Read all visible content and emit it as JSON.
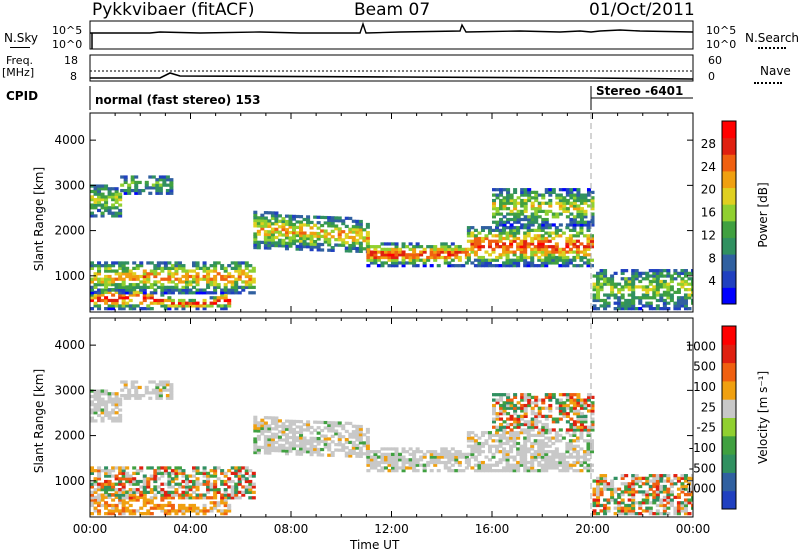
{
  "header": {
    "station": "Pykkvibaer (fitACF)",
    "beam": "Beam 07",
    "date": "01/Oct/2011"
  },
  "top_panels": {
    "nsky_label": "N.Sky",
    "nsky_ticks": [
      "10^5",
      "10^0"
    ],
    "nsearch_label": "N.Search",
    "nsearch_ticks": [
      "10^5",
      "10^0"
    ],
    "freq_label": "Freq.",
    "freq_unit": "[MHz]",
    "freq_ticks": [
      "18",
      "8"
    ],
    "nave_label": "Nave",
    "nave_ticks": [
      "60",
      "0"
    ],
    "cpid_label": "CPID",
    "cpid_programs": [
      "normal (fast stereo) 153",
      "Stereo -6401"
    ]
  },
  "colors": {
    "power_scale": [
      "#0000ff",
      "#2040c0",
      "#3060a0",
      "#309060",
      "#40a040",
      "#90d030",
      "#e0d020",
      "#f0a010",
      "#f06010",
      "#e02010",
      "#ff0000"
    ],
    "velocity_scale": [
      "#2040c0",
      "#3060a0",
      "#309060",
      "#40a040",
      "#90d030",
      "#c8c8c8",
      "#f0a010",
      "#f06010",
      "#e02010",
      "#ff0000"
    ]
  },
  "chart_data": [
    {
      "type": "heatmap",
      "title": "",
      "quantity": "Power",
      "colorbar_label": "Power [dB]",
      "colorbar_ticks": [
        "28",
        "24",
        "20",
        "16",
        "12",
        "8",
        "4"
      ],
      "xlabel": "",
      "ylabel": "Slant Range [km]",
      "ylim": [
        200,
        4600
      ],
      "yticks": [
        "4000",
        "3000",
        "2000",
        "1000"
      ],
      "xticks": [
        "00:00",
        "04:00",
        "08:00",
        "12:00",
        "16:00",
        "20:00",
        "00:00"
      ]
    },
    {
      "type": "heatmap",
      "title": "",
      "quantity": "Velocity",
      "colorbar_label": "Velocity [m s⁻¹]",
      "colorbar_ticks": [
        "1000",
        "500",
        "100",
        "25",
        "-25",
        "-100",
        "-500",
        "-1000"
      ],
      "xlabel": "Time UT",
      "ylabel": "Slant Range [km]",
      "ylim": [
        200,
        4600
      ],
      "yticks": [
        "4000",
        "3000",
        "2000",
        "1000"
      ],
      "xticks": [
        "00:00",
        "04:00",
        "08:00",
        "12:00",
        "16:00",
        "20:00",
        "00:00"
      ]
    }
  ]
}
